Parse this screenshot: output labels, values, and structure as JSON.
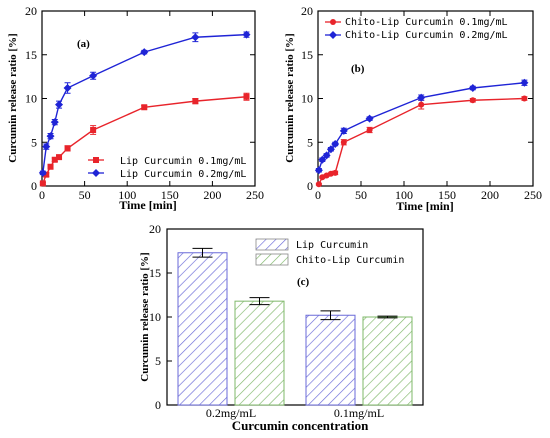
{
  "colors": {
    "red": "#e8242b",
    "blue": "#1f24d6",
    "hatch_blue": "#6a6ad8",
    "hatch_green": "#7fb86a"
  },
  "chart_data": [
    {
      "type": "line",
      "panel_label": "(a)",
      "xlabel": "Time [min]",
      "ylabel": "Curcumin release ratio [%]",
      "xlim": [
        0,
        250
      ],
      "ylim": [
        0,
        20
      ],
      "x_ticks": [
        "0",
        "50",
        "100",
        "150",
        "200",
        "250"
      ],
      "y_ticks": [
        "0",
        "5",
        "10",
        "15",
        "20"
      ],
      "legend_position": "bottom-right",
      "series": [
        {
          "name": "Lip Curcumin 0.1mg/mL",
          "color": "#e8242b",
          "marker": "square",
          "x": [
            1,
            5,
            10,
            15,
            20,
            30,
            60,
            120,
            180,
            240
          ],
          "y": [
            0.3,
            1.3,
            2.2,
            3.0,
            3.3,
            4.3,
            6.4,
            9.0,
            9.7,
            10.2
          ],
          "err": [
            0.1,
            0.2,
            0.2,
            0.2,
            0.2,
            0.3,
            0.5,
            0.2,
            0.3,
            0.4
          ]
        },
        {
          "name": "Lip Curcumin 0.2mg/mL",
          "color": "#1f24d6",
          "marker": "diamond",
          "x": [
            1,
            5,
            10,
            15,
            20,
            30,
            60,
            120,
            180,
            240
          ],
          "y": [
            1.5,
            4.5,
            5.7,
            7.3,
            9.3,
            11.2,
            12.6,
            15.3,
            17.0,
            17.3
          ],
          "err": [
            0.2,
            0.3,
            0.3,
            0.3,
            0.4,
            0.6,
            0.4,
            0.2,
            0.5,
            0.3
          ]
        }
      ]
    },
    {
      "type": "line",
      "panel_label": "(b)",
      "xlabel": "Time [min]",
      "ylabel": "Curcumin release ratio [%]",
      "xlim": [
        0,
        250
      ],
      "ylim": [
        0,
        20
      ],
      "x_ticks": [
        "0",
        "50",
        "100",
        "150",
        "200",
        "250"
      ],
      "y_ticks": [
        "0",
        "5",
        "10",
        "15",
        "20"
      ],
      "legend_position": "top-left",
      "series": [
        {
          "name": "Chito-Lip Curcumin 0.1mg/mL",
          "color": "#e8242b",
          "marker": "circle",
          "x": [
            1,
            5,
            10,
            15,
            20,
            30,
            60,
            120,
            180,
            240
          ],
          "y": [
            0.2,
            1.0,
            1.2,
            1.4,
            1.5,
            5.0,
            6.4,
            9.3,
            9.8,
            10.0
          ],
          "err": [
            0.1,
            0.1,
            0.1,
            0.1,
            0.2,
            0.3,
            0.3,
            0.5,
            0.2,
            0.2
          ]
        },
        {
          "name": "Chito-Lip Curcumin 0.2mg/mL",
          "color": "#1f24d6",
          "marker": "diamond",
          "x": [
            1,
            5,
            10,
            15,
            20,
            30,
            60,
            120,
            180,
            240
          ],
          "y": [
            1.8,
            3.0,
            3.5,
            4.2,
            4.8,
            6.3,
            7.7,
            10.1,
            11.2,
            11.8
          ],
          "err": [
            0.2,
            0.2,
            0.2,
            0.2,
            0.2,
            0.3,
            0.2,
            0.3,
            0.2,
            0.3
          ]
        }
      ]
    },
    {
      "type": "bar",
      "panel_label": "(c)",
      "xlabel": "Curcumin concentration",
      "ylabel": "Curcumin release ratio [%]",
      "ylim": [
        0,
        20
      ],
      "y_ticks": [
        "0",
        "5",
        "10",
        "15",
        "20"
      ],
      "categories": [
        "0.2mg/mL",
        "0.1mg/mL"
      ],
      "legend_position": "top-right",
      "series": [
        {
          "name": "Lip Curcumin",
          "pattern": "blue-hatch",
          "values": [
            17.3,
            10.2
          ],
          "err": [
            0.5,
            0.5
          ]
        },
        {
          "name": "Chito-Lip Curcumin",
          "pattern": "green-hatch",
          "values": [
            11.8,
            10.0
          ],
          "err": [
            0.4,
            0.1
          ]
        }
      ]
    }
  ]
}
